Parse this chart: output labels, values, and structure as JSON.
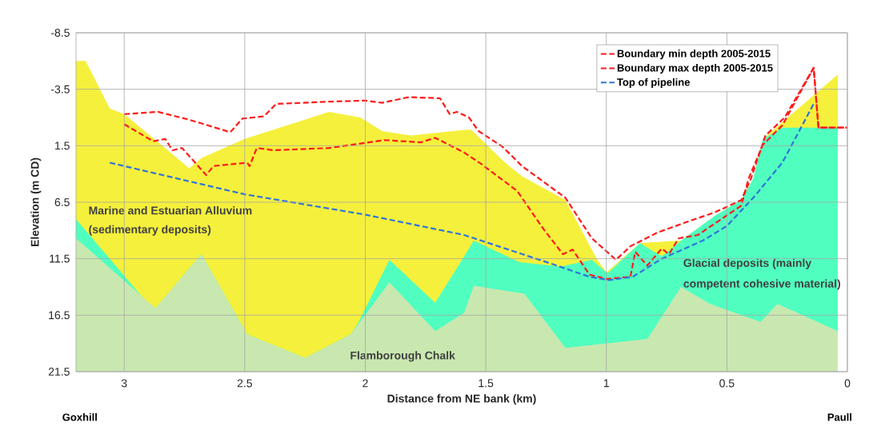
{
  "chart_data": {
    "type": "line",
    "xlabel": "Distance from NE bank (km)",
    "ylabel": "Elevation (m CD)",
    "xlim": [
      3.2,
      0
    ],
    "xticks": [
      3,
      2.5,
      2,
      1.5,
      1,
      0.5,
      0
    ],
    "ylim": [
      21.5,
      -8.5
    ],
    "yticks": [
      -8.5,
      -3.5,
      1.5,
      6.5,
      11.5,
      16.5,
      21.5
    ],
    "grid": true,
    "legend": "top right",
    "line_style": "dashed",
    "series": [
      {
        "type": "area",
        "color": "#f5f03c",
        "x": [
          3.2,
          3.2,
          3.16,
          3.06,
          3.0,
          2.73,
          2.68,
          2.5,
          2.15,
          2.02,
          1.93,
          1.81,
          1.59,
          1.56,
          1.42,
          1.35,
          1.17,
          1.04,
          1.0,
          0.86,
          0.69,
          0.55,
          0.44,
          0.39,
          0.35,
          0.04,
          0.04
        ],
        "values": [
          21.5,
          -6.0,
          -6.0,
          -1.8,
          -1.3,
          3.5,
          2.6,
          0.9,
          -1.5,
          -1.0,
          0.2,
          0.6,
          0.1,
          0.1,
          3.0,
          4.2,
          6.3,
          11.5,
          12.7,
          10.1,
          9.9,
          7.7,
          6.3,
          4.4,
          0.9,
          -4.8,
          21.5
        ]
      },
      {
        "type": "area",
        "color": "#50ffc0",
        "x": [
          3.2,
          3.2,
          2.92,
          2.87,
          2.68,
          2.49,
          2.25,
          2.06,
          2.03,
          1.9,
          1.71,
          1.59,
          1.55,
          1.36,
          1.19,
          1.06,
          1.0,
          0.99,
          0.86,
          0.84,
          0.77,
          0.69,
          0.62,
          0.55,
          0.44,
          0.39,
          0.35,
          0.27,
          0.04,
          0.04
        ],
        "values": [
          21.5,
          8.0,
          15.0,
          15.9,
          11.1,
          18.2,
          20.3,
          18.2,
          17.2,
          11.6,
          15.4,
          11.3,
          9.9,
          11.8,
          12.2,
          11.6,
          12.7,
          12.7,
          10.1,
          10.4,
          11.3,
          9.9,
          8.8,
          7.7,
          6.3,
          4.4,
          0.9,
          -0.1,
          -0.1,
          21.5
        ]
      },
      {
        "type": "area",
        "color": "#c9e8b0",
        "x": [
          3.2,
          3.2,
          2.87,
          2.68,
          2.49,
          2.25,
          2.06,
          1.9,
          1.71,
          1.59,
          1.55,
          1.34,
          1.17,
          0.83,
          0.69,
          0.57,
          0.36,
          0.29,
          0.04,
          0.04
        ],
        "values": [
          21.5,
          9.7,
          15.9,
          11.1,
          18.2,
          20.3,
          18.2,
          13.6,
          17.9,
          16.3,
          13.9,
          14.6,
          19.4,
          18.6,
          14.0,
          15.5,
          17.1,
          15.5,
          17.9,
          21.5
        ]
      },
      {
        "name": "Boundary min depth 2005-2015",
        "color": "#ff1a1a",
        "x": [
          3.0,
          2.86,
          2.73,
          2.56,
          2.51,
          2.42,
          2.37,
          2.15,
          2.0,
          1.93,
          1.82,
          1.69,
          1.65,
          1.62,
          1.57,
          1.53,
          1.43,
          1.35,
          1.17,
          1.06,
          0.96,
          0.9,
          0.79,
          0.66,
          0.55,
          0.44,
          0.4,
          0.34,
          0.26,
          0.14,
          0.12,
          0.0
        ],
        "values": [
          -1.3,
          -1.5,
          -0.8,
          0.3,
          -0.9,
          -1.1,
          -2.2,
          -2.4,
          -2.5,
          -2.3,
          -2.8,
          -2.7,
          -1.3,
          -1.5,
          -1.0,
          0.2,
          1.6,
          3.3,
          6.1,
          9.7,
          11.6,
          10.4,
          9.2,
          8.2,
          7.4,
          6.3,
          4.4,
          0.6,
          -1.0,
          -5.4,
          -0.1,
          -0.1
        ]
      },
      {
        "name": "Boundary max depth 2005-2015",
        "color": "#ff1a1a",
        "x": [
          3.0,
          2.88,
          2.83,
          2.8,
          2.76,
          2.66,
          2.63,
          2.49,
          2.48,
          2.45,
          2.38,
          2.15,
          1.92,
          1.77,
          1.71,
          1.59,
          1.52,
          1.37,
          1.26,
          1.18,
          1.14,
          1.07,
          1.0,
          0.9,
          0.88,
          0.83,
          0.77,
          0.74,
          0.7,
          0.62,
          0.44,
          0.41,
          0.35,
          0.27,
          0.14,
          0.12,
          0.0
        ],
        "values": [
          -0.4,
          1.1,
          0.9,
          1.9,
          1.7,
          4.1,
          3.3,
          3.0,
          3.3,
          1.7,
          1.9,
          1.7,
          1.0,
          1.2,
          0.8,
          2.1,
          3.1,
          5.5,
          8.9,
          11.1,
          10.7,
          12.9,
          13.3,
          13.1,
          10.9,
          12.1,
          10.6,
          11.1,
          9.7,
          9.4,
          6.8,
          4.4,
          1.4,
          -0.3,
          -5.4,
          -0.1,
          -0.1
        ]
      },
      {
        "name": "Top of pipeline",
        "color": "#2f74d8",
        "x": [
          3.06,
          2.5,
          2.0,
          1.59,
          1.22,
          1.07,
          0.99,
          0.89,
          0.77,
          0.6,
          0.5,
          0.39,
          0.27,
          0.14
        ],
        "values": [
          3.0,
          5.8,
          7.6,
          9.4,
          12.0,
          13.1,
          13.4,
          13.1,
          11.5,
          9.9,
          8.6,
          6.1,
          3.0,
          -2.2
        ]
      }
    ],
    "annotations": [
      "Marine and Estuarian Alluvium",
      "(sedimentary deposits)",
      "Glacial deposits (mainly",
      "competent cohesive material)",
      "Flamborough Chalk",
      "Goxhill",
      "Paull"
    ]
  }
}
